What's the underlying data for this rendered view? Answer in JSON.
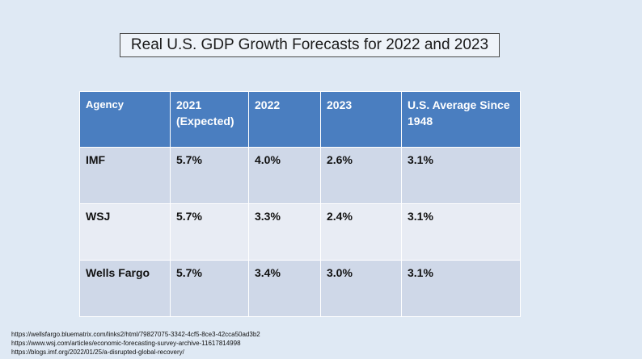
{
  "title": "Real U.S. GDP Growth Forecasts for 2022 and 2023",
  "table": {
    "headers": [
      "Agency",
      "2021\n(Expected)",
      "2022",
      "2023",
      "U.S. Average Since 1948"
    ],
    "rows": [
      [
        "IMF",
        "5.7%",
        "4.0%",
        "2.6%",
        "3.1%"
      ],
      [
        "WSJ",
        "5.7%",
        "3.3%",
        "2.4%",
        "3.1%"
      ],
      [
        "Wells Fargo",
        "5.7%",
        "3.4%",
        "3.0%",
        "3.1%"
      ]
    ]
  },
  "sources": [
    "https://wellsfargo.bluematrix.com/links2/html/79827075-3342-4cf5-8ce3-42cca50ad3b2",
    "https://www.wsj.com/articles/economic-forecasting-survey-archive-11617814998",
    "https://blogs.imf.org/2022/01/25/a-disrupted-global-recovery/"
  ]
}
